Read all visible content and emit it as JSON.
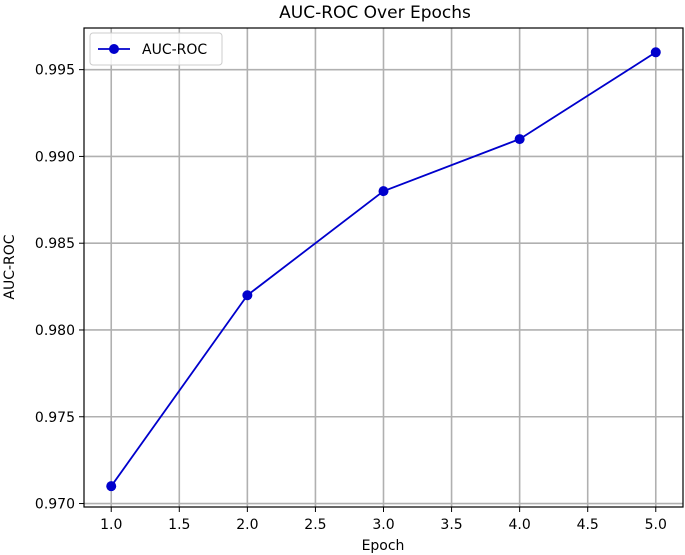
{
  "chart_data": {
    "type": "line",
    "title": "AUC-ROC Over Epochs",
    "xlabel": "Epoch",
    "ylabel": "AUC-ROC",
    "xlim": [
      0.8,
      5.2
    ],
    "ylim": [
      0.9698,
      0.9974
    ],
    "xticks": [
      1.0,
      1.5,
      2.0,
      2.5,
      3.0,
      3.5,
      4.0,
      4.5,
      5.0
    ],
    "xtick_labels": [
      "1.0",
      "1.5",
      "2.0",
      "2.5",
      "3.0",
      "3.5",
      "4.0",
      "4.5",
      "5.0"
    ],
    "yticks": [
      0.97,
      0.975,
      0.98,
      0.985,
      0.99,
      0.995
    ],
    "ytick_labels": [
      "0.970",
      "0.975",
      "0.980",
      "0.985",
      "0.990",
      "0.995"
    ],
    "grid": true,
    "legend": "top-left",
    "series": [
      {
        "name": "AUC-ROC",
        "color": "#0000cc",
        "marker": "circle",
        "x": [
          1,
          2,
          3,
          4,
          5
        ],
        "y": [
          0.971,
          0.982,
          0.988,
          0.991,
          0.996
        ]
      }
    ]
  }
}
